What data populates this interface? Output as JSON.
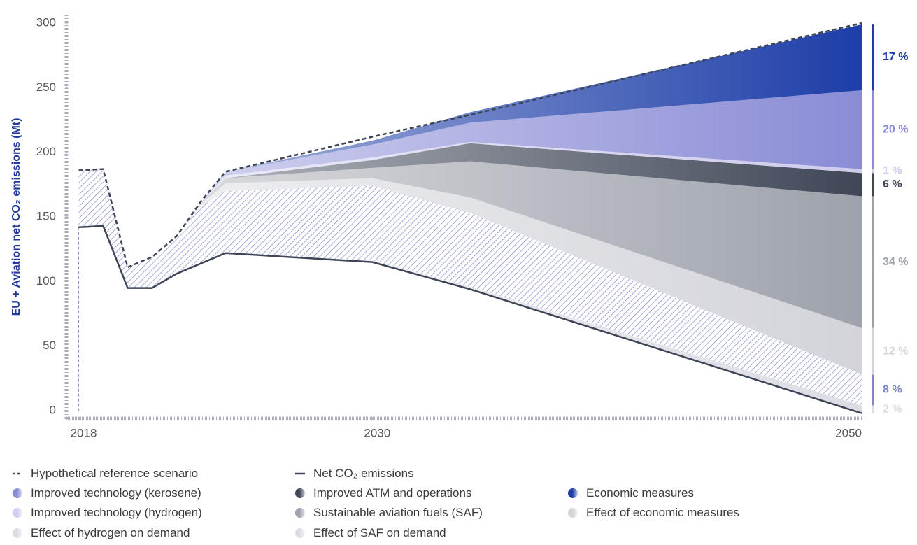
{
  "chart_data": {
    "type": "stacked-area",
    "y_label": "EU + Aviation net CO₂ emissions (Mt)",
    "xlim": [
      2017.5,
      2050
    ],
    "ylim": [
      0,
      300
    ],
    "xticks": [
      2018,
      2030,
      2050
    ],
    "yticks": [
      0,
      50,
      100,
      150,
      200,
      250,
      300
    ],
    "x": [
      2018,
      2019,
      2020,
      2021,
      2022,
      2023,
      2024,
      2030,
      2034,
      2050
    ],
    "lines": [
      {
        "name": "Hypothetical reference scenario",
        "color": "#3c4455",
        "dashed": true,
        "values": [
          186,
          187,
          111,
          119,
          135,
          162,
          185,
          212,
          229,
          300
        ]
      },
      {
        "name": "Net CO₂ emissions",
        "color": "#3c4455",
        "dashed": false,
        "base": true,
        "values": [
          142,
          143,
          95,
          95,
          106,
          114,
          122,
          115,
          94,
          -2
        ]
      }
    ],
    "series": [
      {
        "name": "Effect of hydrogen on demand",
        "color": "#dcdce4",
        "label": "2 %",
        "values": [
          0,
          0,
          0,
          0,
          0,
          0,
          0,
          1,
          2,
          6
        ]
      },
      {
        "name": "Effect of SAF on demand",
        "color": "#7f86c9",
        "hatch": true,
        "label": "8 %",
        "values": [
          44,
          44,
          16,
          24,
          29,
          44,
          48,
          58,
          57,
          24
        ]
      },
      {
        "name": "Effect of economic measures",
        "color": "#d3d4da",
        "label": "12 %",
        "values": [
          0,
          0,
          0,
          0,
          0,
          2,
          6,
          6,
          12,
          36
        ]
      },
      {
        "name": "Sustainable aviation fuels (SAF)",
        "color": "#9ea2ab",
        "label": "34 %",
        "values": [
          0,
          0,
          0,
          0,
          0,
          1,
          4,
          8,
          28,
          102
        ]
      },
      {
        "name": "Improved ATM and operations",
        "color": "#3f4757",
        "label": "6 %",
        "values": [
          0,
          0,
          0,
          0,
          0,
          0,
          0,
          6,
          14,
          18
        ]
      },
      {
        "name": "Improved technology (hydrogen)",
        "color": "#cfcbee",
        "label": "1 %",
        "values": [
          0,
          0,
          0,
          0,
          0,
          0,
          2,
          2,
          1,
          3
        ]
      },
      {
        "name": "Improved technology (kerosene)",
        "color": "#8a8cd6",
        "label": "20 %",
        "values": [
          0,
          0,
          0,
          0,
          0,
          0,
          3,
          10,
          15,
          61
        ]
      },
      {
        "name": "Economic measures",
        "color": "#1d3ea8",
        "label": "17 %",
        "values": [
          0,
          0,
          0,
          0,
          0,
          0,
          0,
          3,
          8,
          51
        ]
      }
    ]
  }
}
